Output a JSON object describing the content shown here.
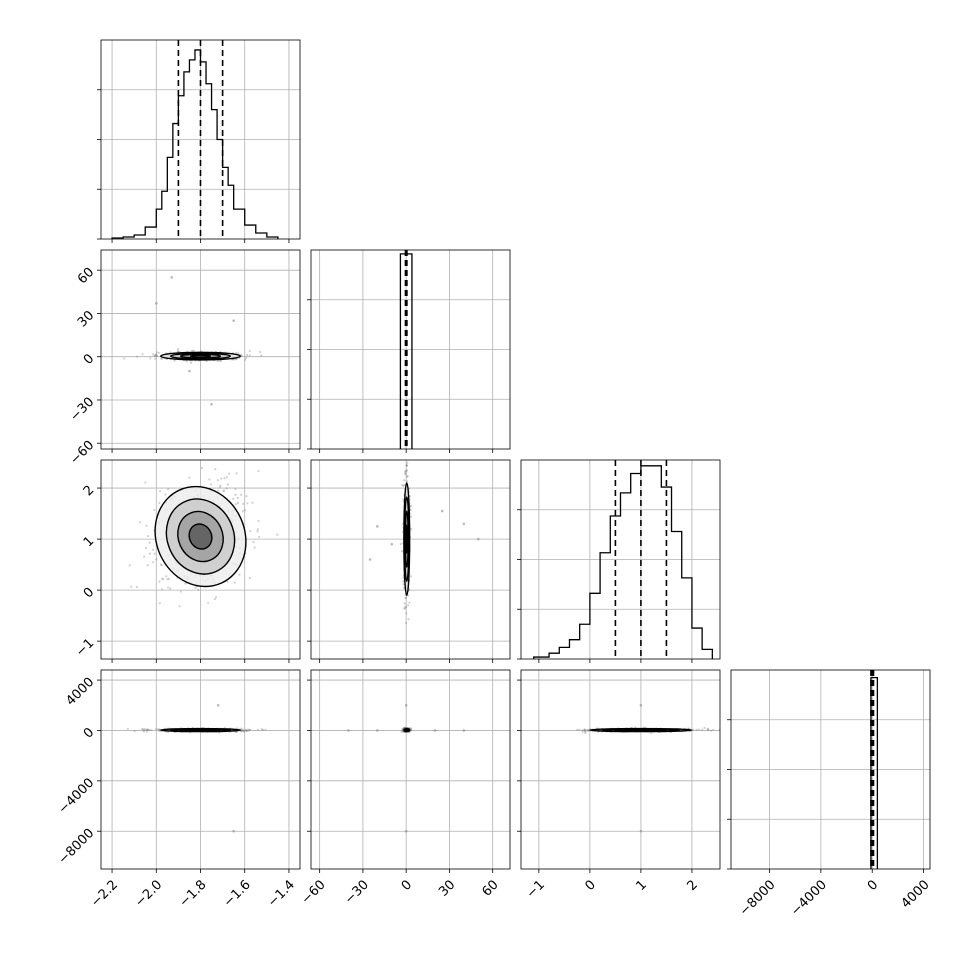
{
  "chart_data": {
    "type": "corner",
    "parameters": [
      {
        "xlim": [
          -2.25,
          -1.35
        ],
        "ticks": [
          -2.2,
          -2.0,
          -1.8,
          -1.6,
          -1.4
        ],
        "tick_labels": [
          "−2.2",
          "−2.0",
          "−1.8",
          "−1.6",
          "−1.4"
        ]
      },
      {
        "xlim": [
          -66,
          72
        ],
        "ticks": [
          -60,
          -30,
          0,
          30,
          60
        ],
        "tick_labels": [
          "−60",
          "−30",
          "0",
          "30",
          "60"
        ]
      },
      {
        "xlim": [
          -1.35,
          2.55
        ],
        "ticks": [
          -1,
          0,
          1,
          2
        ],
        "tick_labels": [
          "−1",
          "0",
          "1",
          "2"
        ]
      },
      {
        "xlim": [
          -11000,
          4500
        ],
        "ticks": [
          -8000,
          -4000,
          0,
          4000
        ],
        "tick_labels": [
          "−8000",
          "−4000",
          "0",
          "4000"
        ]
      }
    ],
    "row_y_axes": [
      {
        "param": 1,
        "ylim": [
          -64,
          74
        ],
        "ticks": [
          -60,
          -30,
          0,
          30,
          60
        ],
        "tick_labels": [
          "−60",
          "−30",
          "0",
          "30",
          "60"
        ]
      },
      {
        "param": 2,
        "ylim": [
          -1.35,
          2.55
        ],
        "ticks": [
          -1,
          0,
          1,
          2
        ],
        "tick_labels": [
          "−1",
          "0",
          "1",
          "2"
        ]
      },
      {
        "param": 3,
        "ylim": [
          -11000,
          4800
        ],
        "ticks": [
          -8000,
          -4000,
          0,
          4000
        ],
        "tick_labels": [
          "−8000",
          "−4000",
          "0",
          "4000"
        ]
      }
    ],
    "diagonal_histograms": [
      {
        "param": 0,
        "bin_edges": [
          -2.2,
          -2.15,
          -2.1,
          -2.05,
          -2.0,
          -1.975,
          -1.95,
          -1.925,
          -1.9,
          -1.875,
          -1.85,
          -1.825,
          -1.8,
          -1.775,
          -1.75,
          -1.725,
          -1.7,
          -1.675,
          -1.65,
          -1.6,
          -1.55,
          -1.5,
          -1.45
        ],
        "counts": [
          0.5,
          1,
          2,
          6,
          15,
          24,
          41,
          58,
          72,
          84,
          90,
          95,
          89,
          78,
          65,
          50,
          36,
          27,
          15,
          7,
          3,
          1
        ],
        "ymax": 100,
        "quantiles": [
          -1.9,
          -1.8,
          -1.7
        ]
      },
      {
        "param": 1,
        "bin_edges": [
          -4,
          0,
          4
        ],
        "counts": [
          100,
          100
        ],
        "ymax": 102,
        "quantiles": [
          -0.5,
          0,
          0.5
        ]
      },
      {
        "param": 2,
        "bin_edges": [
          -1.1,
          -0.8,
          -0.6,
          -0.4,
          -0.2,
          0.0,
          0.2,
          0.4,
          0.6,
          0.8,
          1.0,
          1.2,
          1.4,
          1.6,
          1.8,
          2.0,
          2.2,
          2.4
        ],
        "counts": [
          1,
          3,
          6,
          10,
          18,
          34,
          55,
          74,
          86,
          96,
          100,
          100,
          89,
          66,
          42,
          16,
          5
        ],
        "ymax": 103,
        "quantiles": [
          0.5,
          1.0,
          1.5
        ]
      },
      {
        "param": 3,
        "bin_edges": [
          -100,
          400
        ],
        "counts": [
          100
        ],
        "ymax": 104,
        "quantiles": [
          -100,
          0,
          100
        ]
      }
    ],
    "scatter_panels": [
      {
        "x_param": 0,
        "y_param": 1,
        "center": [
          -1.8,
          0.4
        ],
        "spread": [
          0.09,
          1.3
        ],
        "outliers": [
          [
            -1.93,
            55
          ],
          [
            -2.0,
            37
          ],
          [
            -1.65,
            25
          ],
          [
            -1.75,
            -33
          ],
          [
            -1.85,
            -10
          ]
        ]
      },
      {
        "x_param": 0,
        "y_param": 2,
        "center": [
          -1.8,
          1.05
        ],
        "spread": [
          0.1,
          0.5
        ],
        "outliers": []
      },
      {
        "x_param": 1,
        "y_param": 2,
        "center": [
          0.4,
          1.0
        ],
        "spread": [
          1.0,
          0.55
        ],
        "outliers": [
          [
            -20,
            1.25
          ],
          [
            -10,
            0.9
          ],
          [
            25,
            1.55
          ],
          [
            40,
            1.3
          ],
          [
            50,
            1.0
          ],
          [
            -25,
            0.6
          ]
        ]
      },
      {
        "x_param": 0,
        "y_param": 3,
        "center": [
          -1.8,
          30
        ],
        "spread": [
          0.09,
          60
        ],
        "outliers": [
          [
            -1.72,
            2000
          ],
          [
            -1.65,
            -8000
          ]
        ]
      },
      {
        "x_param": 1,
        "y_param": 3,
        "center": [
          0.4,
          30
        ],
        "spread": [
          1.0,
          60
        ],
        "outliers": [
          [
            -20,
            0
          ],
          [
            20,
            0
          ],
          [
            0,
            2000
          ],
          [
            0,
            -8000
          ],
          [
            -40,
            0
          ],
          [
            40,
            0
          ]
        ]
      },
      {
        "x_param": 2,
        "y_param": 3,
        "center": [
          1.0,
          30
        ],
        "spread": [
          0.5,
          60
        ],
        "outliers": [
          [
            1.0,
            2000
          ],
          [
            1.0,
            -8000
          ]
        ]
      }
    ],
    "grid": true
  }
}
